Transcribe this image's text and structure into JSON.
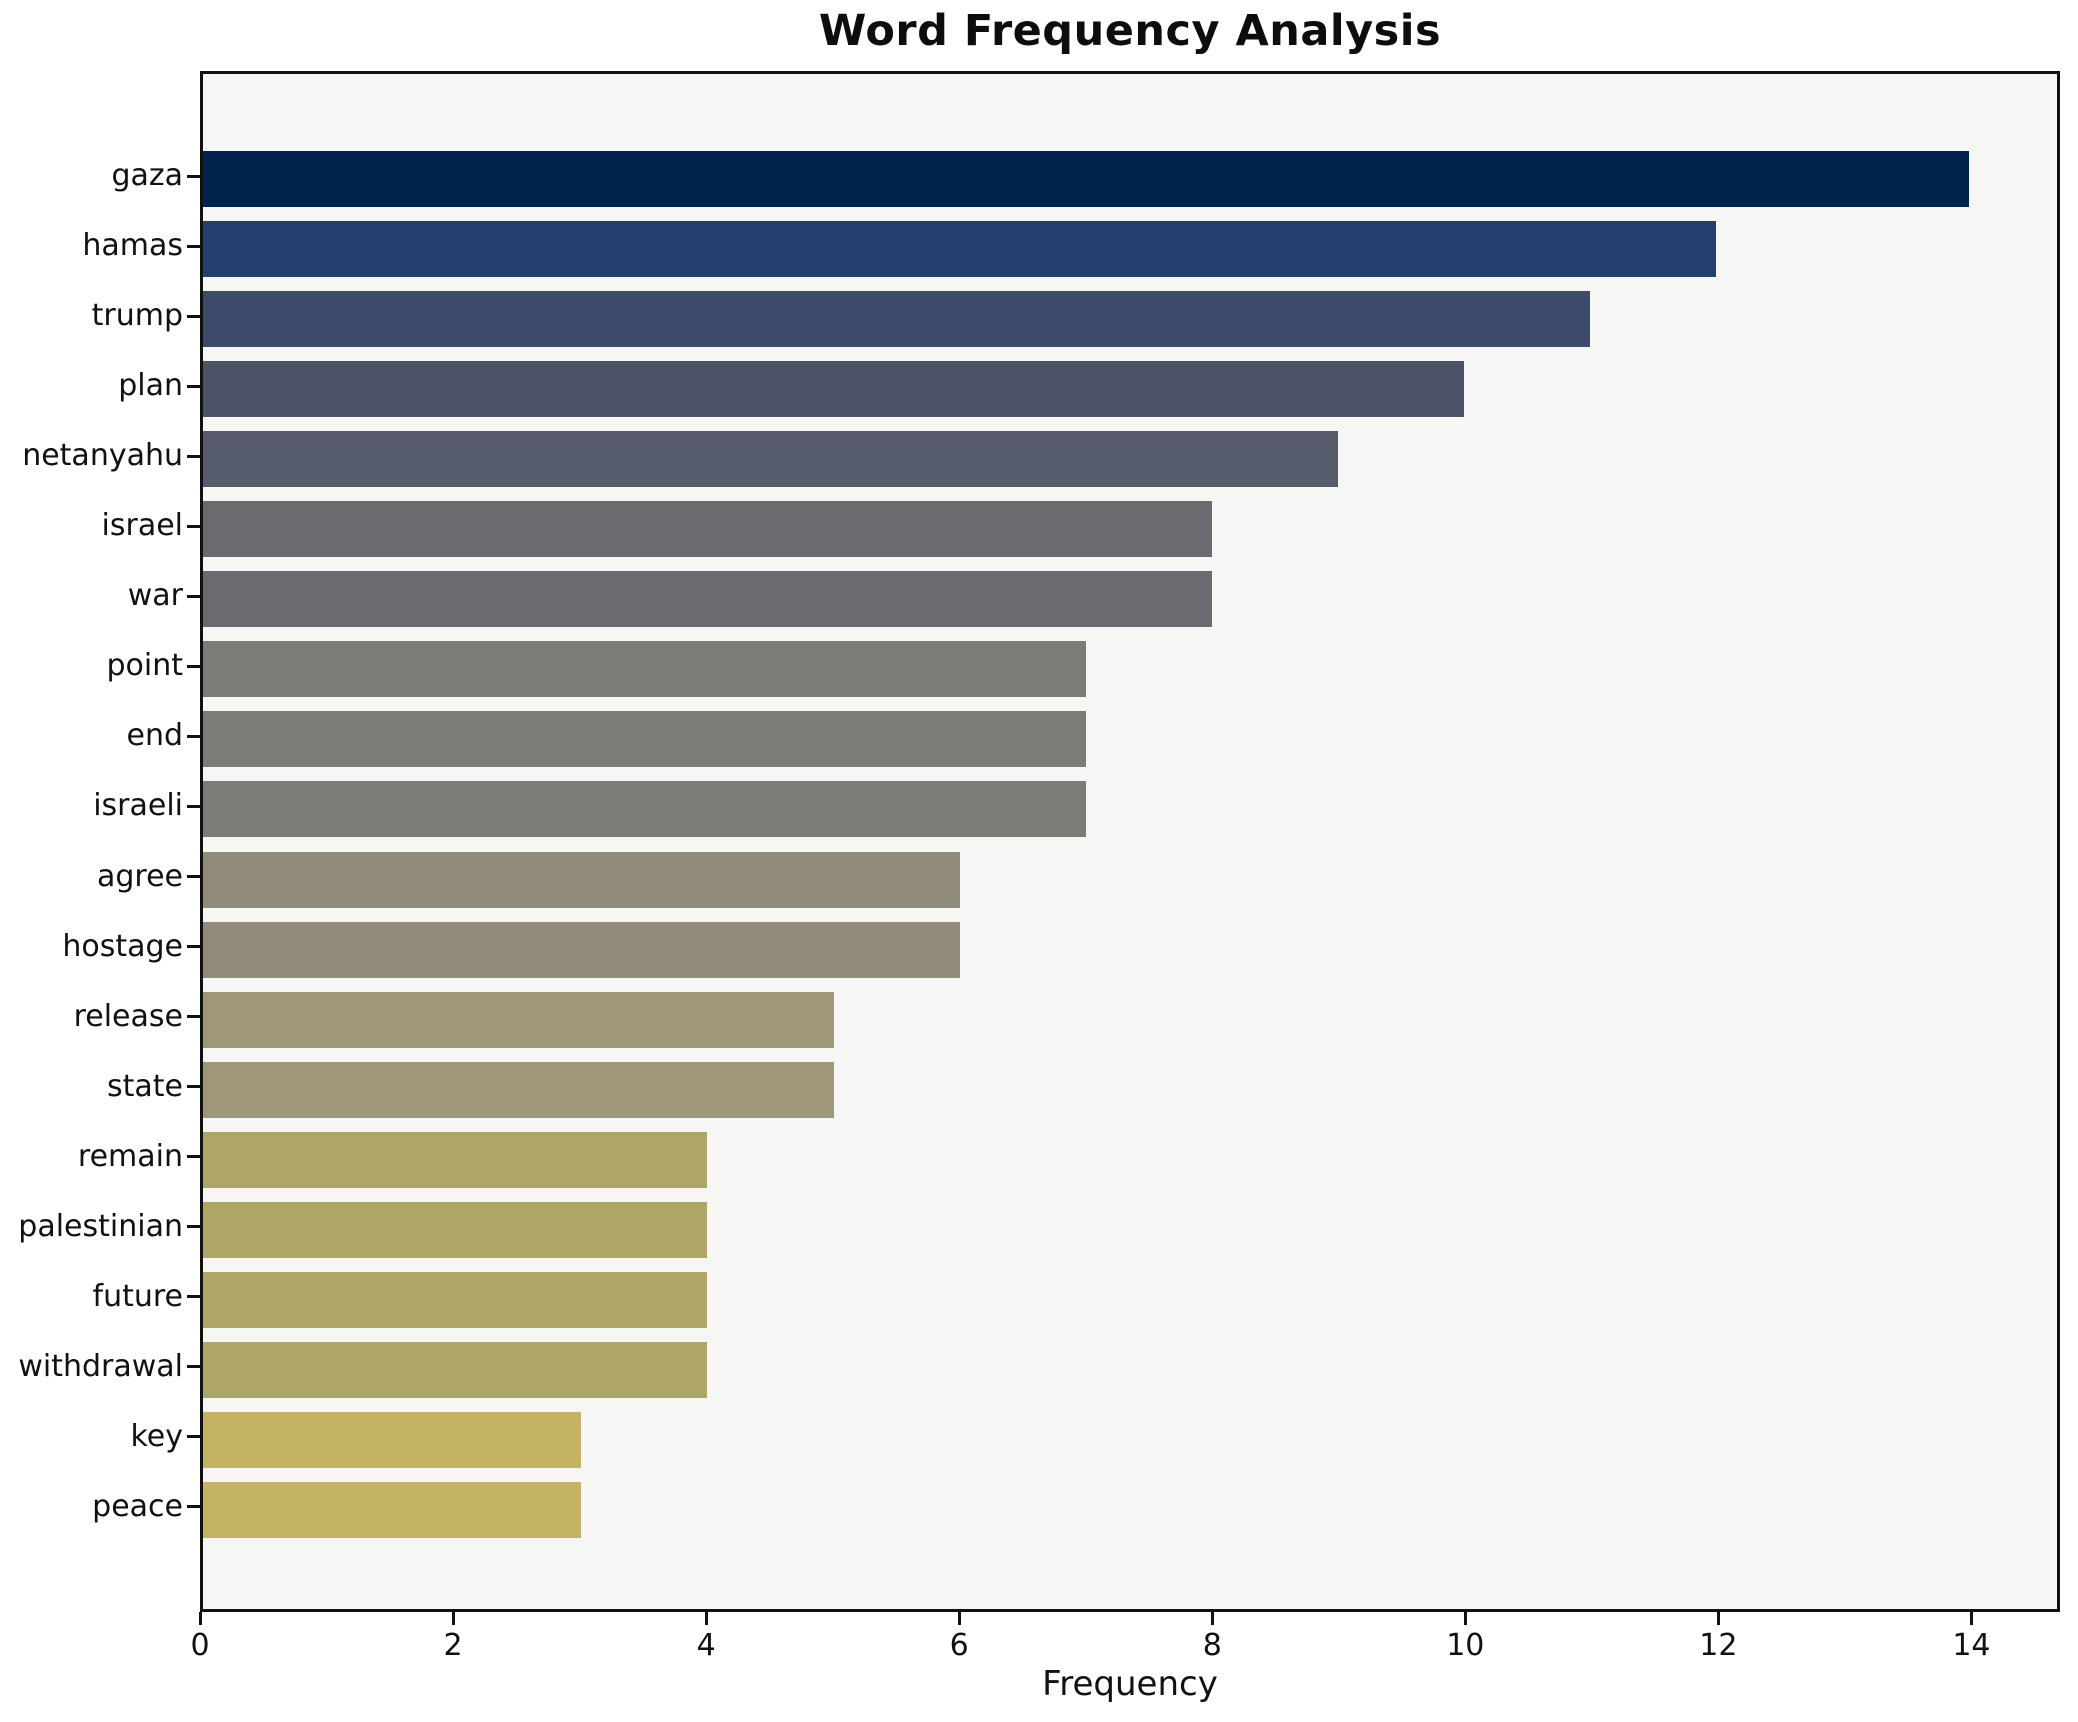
{
  "chart_data": {
    "type": "bar",
    "orientation": "horizontal",
    "title": "Word Frequency Analysis",
    "xlabel": "Frequency",
    "ylabel": "",
    "categories": [
      "gaza",
      "hamas",
      "trump",
      "plan",
      "netanyahu",
      "israel",
      "war",
      "point",
      "end",
      "israeli",
      "agree",
      "hostage",
      "release",
      "state",
      "remain",
      "palestinian",
      "future",
      "withdrawal",
      "key",
      "peace"
    ],
    "values": [
      14,
      12,
      11,
      10,
      9,
      8,
      8,
      7,
      7,
      7,
      6,
      6,
      5,
      5,
      4,
      4,
      4,
      4,
      3,
      3
    ],
    "bar_colors": [
      "#01244e",
      "#243e6e",
      "#3d4b6b",
      "#4c5368",
      "#565c6b",
      "#6b6b6f",
      "#6b6b6f",
      "#7b7b77",
      "#7b7b77",
      "#7b7b77",
      "#908c79",
      "#908c79",
      "#9e9778",
      "#9e9778",
      "#ada667",
      "#ada667",
      "#ada667",
      "#ada667",
      "#c4b365",
      "#c4b365"
    ],
    "x_ticks": [
      0,
      2,
      4,
      6,
      8,
      10,
      12,
      14
    ],
    "xlim": [
      0,
      14.7
    ],
    "grid": "off",
    "legend": "none",
    "plot_bg": "#f6f6f5",
    "figure_bg": "#ffffff",
    "spine_color": "#111111"
  }
}
